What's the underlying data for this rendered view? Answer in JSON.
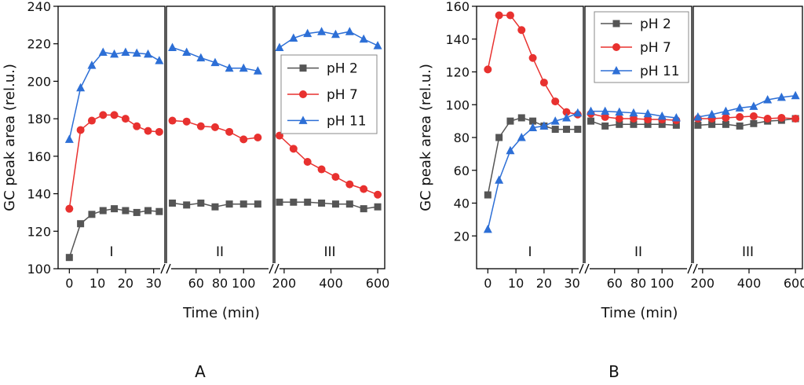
{
  "chart_data": [
    {
      "type": "line",
      "panel_label": "A",
      "xlabel": "Time (min)",
      "ylabel": "GC peak area (rel.u.)",
      "ylim": [
        100,
        240
      ],
      "yticks": [
        100,
        120,
        140,
        160,
        180,
        200,
        220,
        240
      ],
      "grid": false,
      "legend": "top-right",
      "segments": [
        {
          "label": "I",
          "xlim": [
            -4,
            34
          ],
          "ticks": [
            0,
            10,
            20,
            30
          ],
          "tick_labels": [
            "0",
            "10",
            "20",
            "30"
          ]
        },
        {
          "label": "II",
          "xlim": [
            35,
            125
          ],
          "ticks": [
            60,
            80,
            100
          ],
          "tick_labels": [
            "60",
            "80",
            "100"
          ]
        },
        {
          "label": "III",
          "xlim": [
            160,
            630
          ],
          "ticks": [
            200,
            400,
            600
          ],
          "tick_labels": [
            "200",
            "400",
            "600"
          ]
        }
      ],
      "series": [
        {
          "name": "pH 2",
          "color": "#555555",
          "marker": "square",
          "x": [
            0,
            4,
            8,
            12,
            16,
            20,
            24,
            28,
            32,
            40,
            52,
            64,
            76,
            88,
            100,
            112,
            180,
            240,
            300,
            360,
            420,
            480,
            540,
            600
          ],
          "y": [
            106,
            124,
            129,
            131,
            132,
            131,
            130,
            131,
            130.5,
            135,
            134,
            135,
            133,
            134.5,
            134.5,
            134.5,
            135.5,
            135.5,
            135.5,
            135,
            134.5,
            134.5,
            132,
            133
          ]
        },
        {
          "name": "pH 7",
          "color": "#e8312f",
          "marker": "circle",
          "x": [
            0,
            4,
            8,
            12,
            16,
            20,
            24,
            28,
            32,
            40,
            52,
            64,
            76,
            88,
            100,
            112,
            180,
            240,
            300,
            360,
            420,
            480,
            540,
            600
          ],
          "y": [
            132,
            174,
            179,
            182,
            182,
            180,
            176,
            173.5,
            173,
            179,
            178.5,
            176,
            175.5,
            173,
            169,
            170,
            171,
            164,
            157,
            153,
            149,
            145,
            142.5,
            139.5
          ]
        },
        {
          "name": "pH 11",
          "color": "#2d6fd6",
          "marker": "triangle",
          "x": [
            0,
            4,
            8,
            12,
            16,
            20,
            24,
            28,
            32,
            40,
            52,
            64,
            76,
            88,
            100,
            112,
            180,
            240,
            300,
            360,
            420,
            480,
            540,
            600
          ],
          "y": [
            169,
            196.5,
            208.5,
            215.5,
            214.5,
            215.5,
            215,
            214.5,
            211,
            218,
            215.5,
            212.5,
            210,
            207,
            207,
            205.5,
            218,
            223,
            225.5,
            226.5,
            225,
            226.5,
            222.5,
            219
          ]
        }
      ]
    },
    {
      "type": "line",
      "panel_label": "B",
      "xlabel": "Time (min)",
      "ylabel": "GC peak area (rel.u.)",
      "ylim": [
        0,
        160
      ],
      "yticks": [
        20,
        40,
        60,
        80,
        100,
        120,
        140,
        160
      ],
      "grid": false,
      "legend": "top",
      "segments": [
        {
          "label": "I",
          "xlim": [
            -4,
            34
          ],
          "ticks": [
            0,
            10,
            20,
            30
          ],
          "tick_labels": [
            "0",
            "10",
            "20",
            "30"
          ]
        },
        {
          "label": "II",
          "xlim": [
            35,
            125
          ],
          "ticks": [
            60,
            80,
            100
          ],
          "tick_labels": [
            "60",
            "80",
            "100"
          ]
        },
        {
          "label": "III",
          "xlim": [
            160,
            630
          ],
          "ticks": [
            200,
            400,
            600
          ],
          "tick_labels": [
            "200",
            "400",
            "600"
          ]
        }
      ],
      "series": [
        {
          "name": "pH 2",
          "color": "#555555",
          "marker": "square",
          "x": [
            0,
            4,
            8,
            12,
            16,
            20,
            24,
            28,
            32,
            40,
            52,
            64,
            76,
            88,
            100,
            112,
            180,
            240,
            300,
            360,
            420,
            480,
            540,
            600
          ],
          "y": [
            45,
            80,
            90,
            92,
            90,
            87,
            85,
            85,
            85,
            90,
            87,
            88,
            88,
            88,
            88,
            87.5,
            87.5,
            88,
            88,
            87,
            88.5,
            90,
            90.5,
            91.5
          ]
        },
        {
          "name": "pH 7",
          "color": "#e8312f",
          "marker": "circle",
          "x": [
            0,
            4,
            8,
            12,
            16,
            20,
            24,
            28,
            32,
            40,
            52,
            64,
            76,
            88,
            100,
            112,
            180,
            240,
            300,
            360,
            420,
            480,
            540,
            600
          ],
          "y": [
            121.5,
            154.5,
            154.5,
            145.5,
            128.5,
            113.5,
            102,
            95.5,
            94,
            94.5,
            92.5,
            91.5,
            91.5,
            91,
            91,
            90.5,
            91.5,
            91.5,
            92,
            92.5,
            93,
            91.5,
            92,
            91.5
          ]
        },
        {
          "name": "pH 11",
          "color": "#2d6fd6",
          "marker": "triangle",
          "x": [
            0,
            4,
            8,
            12,
            16,
            20,
            24,
            28,
            32,
            40,
            52,
            64,
            76,
            88,
            100,
            112,
            180,
            240,
            300,
            360,
            420,
            480,
            540,
            600
          ],
          "y": [
            24,
            54,
            72,
            80,
            86,
            87,
            90,
            92,
            95,
            96,
            96,
            95.5,
            95,
            94.5,
            93,
            92,
            92.5,
            94,
            96,
            98,
            99,
            103,
            104.5,
            105.5
          ]
        }
      ]
    }
  ]
}
